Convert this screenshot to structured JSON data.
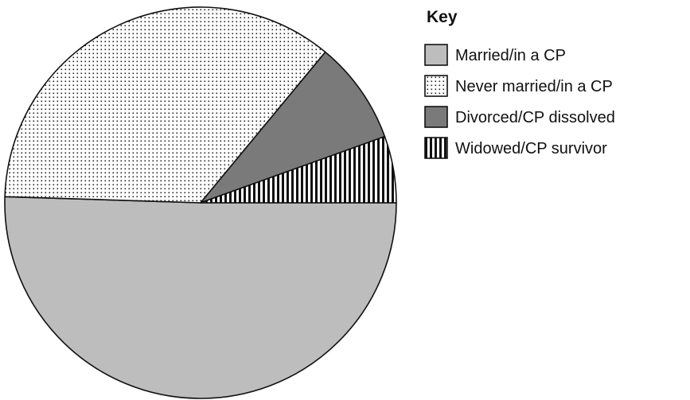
{
  "chart_data": {
    "type": "pie",
    "title": "",
    "legend_title": "Key",
    "legend_position": "right",
    "start": "3 o'clock, clockwise",
    "slices": [
      {
        "label": "Married/in a CP",
        "value": 50.5,
        "fill": "#bdbdbd",
        "pattern": "solid"
      },
      {
        "label": "Never married/in a CP",
        "value": 35.5,
        "fill": "#ffffff",
        "pattern": "dots"
      },
      {
        "label": "Divorced/CP dissolved",
        "value": 8.5,
        "fill": "#7a7a7a",
        "pattern": "solid"
      },
      {
        "label": "Widowed/CP survivor",
        "value": 5.5,
        "fill": "#ffffff",
        "pattern": "vertical-stripes"
      }
    ]
  }
}
